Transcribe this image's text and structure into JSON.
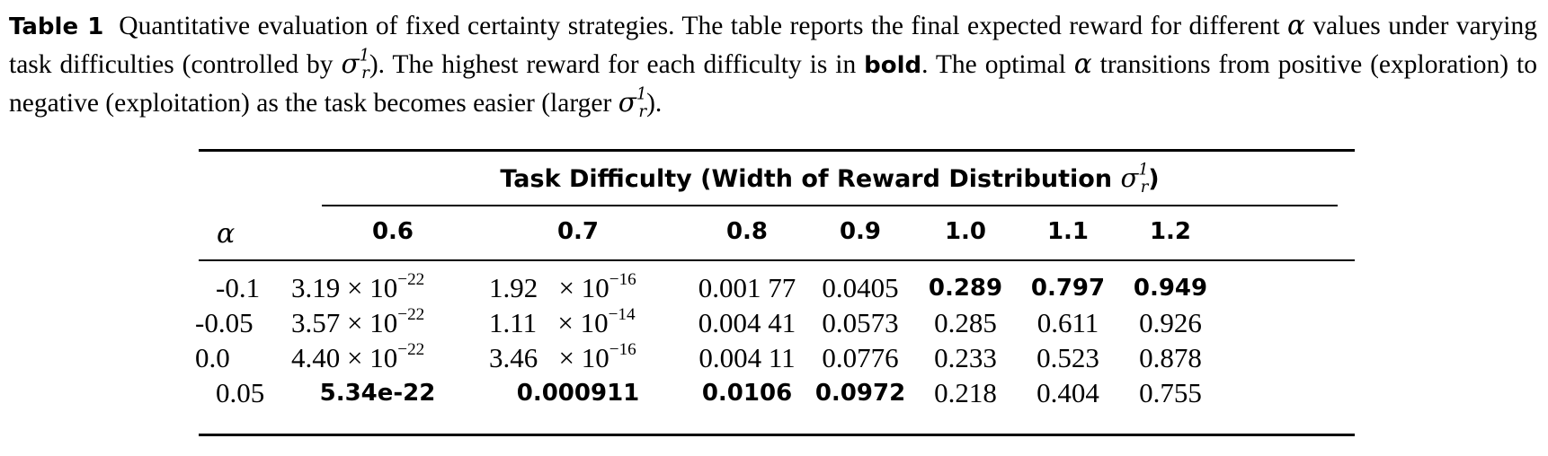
{
  "caption": {
    "label": "Table 1",
    "text_part1": "Quantitative evaluation of fixed certainty strategies. The table reports the final expected reward for different ",
    "alpha_symbol": "α",
    "text_part2": " values under varying task difficulties (controlled by ",
    "sigma_symbol": "σ",
    "sigma_sup": "1",
    "sigma_sub": "r",
    "text_part3": "). The highest reward for each difficulty is in ",
    "bold_word": "bold",
    "text_part4": ". The optimal ",
    "text_part5": " transitions from positive (exploration) to negative (exploitation) as the task becomes easier (larger ",
    "text_part6": ")."
  },
  "table": {
    "group_header_text": "Task Difficulty (Width of Reward Distribution ",
    "group_header_close": ")",
    "row_header": "α",
    "columns": [
      "0.6",
      "0.7",
      "0.8",
      "0.9",
      "1.0",
      "1.1",
      "1.2"
    ],
    "times_symbol": "×",
    "rows": [
      {
        "alpha": "-0.1",
        "c06_mant": "3.19",
        "c06_exp": "10",
        "c06_pow": "−22",
        "c07_mant": "1.92",
        "c07_exp": "10",
        "c07_pow": "−16",
        "c08": "0.001 77",
        "c09": "0.0405",
        "c10": "0.289",
        "c11": "0.797",
        "c12": "0.949"
      },
      {
        "alpha": "-0.05",
        "c06_mant": "3.57",
        "c06_exp": "10",
        "c06_pow": "−22",
        "c07_mant": "1.11",
        "c07_exp": "10",
        "c07_pow": "−14",
        "c08": "0.004 41",
        "c09": "0.0573",
        "c10": "0.285",
        "c11": "0.611",
        "c12": "0.926"
      },
      {
        "alpha": "0.0",
        "c06_mant": "4.40",
        "c06_exp": "10",
        "c06_pow": "−22",
        "c07_mant": "3.46",
        "c07_exp": "10",
        "c07_pow": "−16",
        "c08": "0.004 11",
        "c09": "0.0776",
        "c10": "0.233",
        "c11": "0.523",
        "c12": "0.878"
      },
      {
        "alpha": "0.05",
        "c06": "5.34e-22",
        "c07": "0.000911",
        "c08": "0.0106",
        "c09": "0.0972",
        "c10": "0.218",
        "c11": "0.404",
        "c12": "0.755"
      }
    ]
  }
}
